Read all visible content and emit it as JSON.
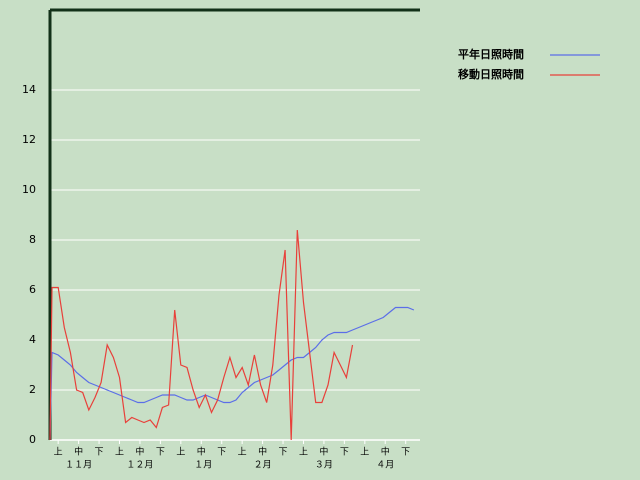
{
  "chart_data": {
    "type": "line",
    "x": [
      0,
      1,
      4,
      7,
      10,
      13,
      16,
      19,
      22,
      25,
      28,
      31,
      34,
      37,
      40,
      43,
      46,
      49,
      52,
      55,
      58,
      61,
      64,
      67,
      70,
      73,
      76,
      79,
      82,
      85,
      88,
      91,
      94,
      97,
      100,
      103,
      106,
      109,
      112,
      115,
      118,
      121,
      124,
      127,
      130,
      133,
      136,
      139,
      142,
      145,
      148,
      151,
      154,
      157,
      160,
      163,
      166,
      169,
      172,
      175,
      178
    ],
    "xlim": [
      0,
      181
    ],
    "ylim": [
      0,
      17.2
    ],
    "yticks": [
      0,
      2,
      4,
      6,
      8,
      10,
      12,
      14
    ],
    "grid": true,
    "legend": "top-right",
    "xticks": [
      {
        "value": 4,
        "label": "上"
      },
      {
        "value": 14,
        "label": "中"
      },
      {
        "value": 24,
        "label": "下"
      },
      {
        "value": 34,
        "label": "上"
      },
      {
        "value": 44,
        "label": "中"
      },
      {
        "value": 54,
        "label": "下"
      },
      {
        "value": 64,
        "label": "上"
      },
      {
        "value": 74,
        "label": "中"
      },
      {
        "value": 84,
        "label": "下"
      },
      {
        "value": 94,
        "label": "上"
      },
      {
        "value": 104,
        "label": "中"
      },
      {
        "value": 114,
        "label": "下"
      },
      {
        "value": 124,
        "label": "上"
      },
      {
        "value": 134,
        "label": "中"
      },
      {
        "value": 144,
        "label": "下"
      },
      {
        "value": 154,
        "label": "上"
      },
      {
        "value": 164,
        "label": "中"
      },
      {
        "value": 174,
        "label": "下"
      }
    ],
    "month_ticks": [
      {
        "value": 14,
        "label": "１１月"
      },
      {
        "value": 44,
        "label": "１２月"
      },
      {
        "value": 75,
        "label": "１月"
      },
      {
        "value": 104,
        "label": "２月"
      },
      {
        "value": 134,
        "label": "３月"
      },
      {
        "value": 164,
        "label": "４月"
      }
    ],
    "series": [
      {
        "name": "平年日照時間",
        "color": "#5b6ee8",
        "values": [
          0,
          3.5,
          3.4,
          3.2,
          3.0,
          2.7,
          2.5,
          2.3,
          2.2,
          2.1,
          2.0,
          1.9,
          1.8,
          1.7,
          1.6,
          1.5,
          1.5,
          1.6,
          1.7,
          1.8,
          1.8,
          1.8,
          1.7,
          1.6,
          1.6,
          1.7,
          1.8,
          1.7,
          1.6,
          1.5,
          1.5,
          1.6,
          1.9,
          2.1,
          2.3,
          2.4,
          2.5,
          2.6,
          2.8,
          3.0,
          3.2,
          3.3,
          3.3,
          3.5,
          3.7,
          4.0,
          4.2,
          4.3,
          4.3,
          4.3,
          4.4,
          4.5,
          4.6,
          4.7,
          4.8,
          4.9,
          5.1,
          5.3,
          5.3,
          5.3,
          5.2
        ]
      },
      {
        "name": "移動日照時間",
        "color": "#e8403a",
        "values": [
          0,
          6.1,
          6.1,
          4.5,
          3.5,
          2.0,
          1.9,
          1.2,
          1.7,
          2.3,
          3.8,
          3.3,
          2.5,
          0.7,
          0.9,
          0.8,
          0.7,
          0.8,
          0.5,
          1.3,
          1.4,
          5.2,
          3.0,
          2.9,
          2.0,
          1.3,
          1.8,
          1.1,
          1.6,
          2.5,
          3.3,
          2.5,
          2.9,
          2.2,
          3.4,
          2.2,
          1.5,
          3.0,
          5.8,
          7.6,
          0,
          8.4,
          5.5,
          3.5,
          1.5,
          1.5,
          2.2,
          3.5,
          3.0,
          2.5,
          3.8,
          null,
          null,
          null,
          null,
          null,
          null,
          null,
          null,
          null,
          null
        ]
      }
    ]
  }
}
